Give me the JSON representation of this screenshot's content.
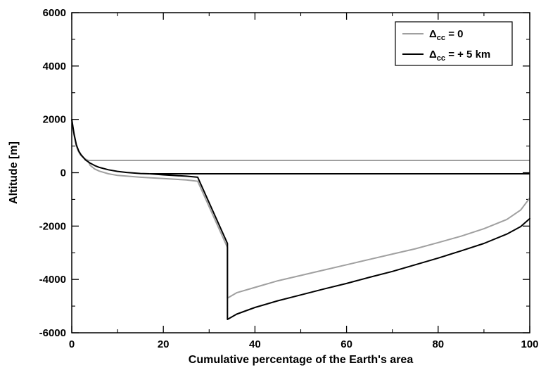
{
  "chart_data": {
    "type": "line",
    "title": "",
    "xlabel": "Cumulative percentage of the Earth's area",
    "ylabel": "Altitude [m]",
    "xlim": [
      0,
      100
    ],
    "ylim": [
      -6000,
      6000
    ],
    "x_ticks": [
      0,
      20,
      40,
      60,
      80,
      100
    ],
    "x_tick_labels": [
      "0",
      "20",
      "40",
      "60",
      "80",
      "100"
    ],
    "y_ticks": [
      -6000,
      -4000,
      -2000,
      0,
      2000,
      4000,
      6000
    ],
    "y_tick_labels": [
      "-6000",
      "-4000",
      "-2000",
      "0",
      "2000",
      "4000",
      "6000"
    ],
    "grid": false,
    "legend_position": "top-right",
    "series": [
      {
        "name_base": "Δ",
        "name_sub": "cc",
        "name_rest": " = 0",
        "color": "#a0a0a0",
        "points": [
          [
            0,
            2000
          ],
          [
            0.5,
            1400
          ],
          [
            1,
            1000
          ],
          [
            1.5,
            780
          ],
          [
            2,
            650
          ],
          [
            2.5,
            570
          ],
          [
            3,
            510
          ],
          [
            3.5,
            470
          ],
          [
            4,
            460
          ]
        ],
        "flat": {
          "x": [
            4,
            100
          ],
          "y": 460
        },
        "underwater": [
          [
            3.5,
            470
          ],
          [
            4,
            280
          ],
          [
            5,
            140
          ],
          [
            6,
            60
          ],
          [
            8,
            -40
          ],
          [
            10,
            -100
          ],
          [
            15,
            -170
          ],
          [
            20,
            -220
          ],
          [
            25,
            -270
          ],
          [
            27.5,
            -320
          ],
          [
            34,
            -2800
          ],
          [
            34,
            -4700
          ],
          [
            36,
            -4500
          ],
          [
            40,
            -4300
          ],
          [
            45,
            -4050
          ],
          [
            50,
            -3850
          ],
          [
            55,
            -3650
          ],
          [
            60,
            -3450
          ],
          [
            65,
            -3250
          ],
          [
            70,
            -3050
          ],
          [
            75,
            -2850
          ],
          [
            80,
            -2620
          ],
          [
            85,
            -2380
          ],
          [
            90,
            -2100
          ],
          [
            95,
            -1750
          ],
          [
            98,
            -1400
          ],
          [
            100,
            -950
          ]
        ]
      },
      {
        "name_base": "Δ",
        "name_sub": "cc",
        "name_rest": " = + 5 km",
        "color": "#000000",
        "points": [
          [
            0,
            2000
          ],
          [
            0.5,
            1450
          ],
          [
            1,
            1050
          ],
          [
            1.5,
            820
          ],
          [
            2,
            680
          ],
          [
            3,
            480
          ],
          [
            4,
            360
          ],
          [
            5,
            270
          ],
          [
            6,
            200
          ],
          [
            8,
            110
          ],
          [
            10,
            50
          ],
          [
            12,
            10
          ],
          [
            15,
            -30
          ],
          [
            17,
            -40
          ]
        ],
        "flat": {
          "x": [
            17,
            100
          ],
          "y": -40
        },
        "underwater": [
          [
            17,
            -40
          ],
          [
            20,
            -80
          ],
          [
            25,
            -130
          ],
          [
            27.5,
            -170
          ],
          [
            34,
            -2650
          ],
          [
            34,
            -5500
          ],
          [
            36,
            -5300
          ],
          [
            40,
            -5050
          ],
          [
            45,
            -4800
          ],
          [
            50,
            -4580
          ],
          [
            55,
            -4360
          ],
          [
            60,
            -4150
          ],
          [
            65,
            -3920
          ],
          [
            70,
            -3700
          ],
          [
            75,
            -3450
          ],
          [
            80,
            -3200
          ],
          [
            85,
            -2930
          ],
          [
            90,
            -2650
          ],
          [
            95,
            -2300
          ],
          [
            98,
            -2020
          ],
          [
            100,
            -1720
          ],
          [
            100,
            -1700
          ]
        ]
      }
    ]
  }
}
